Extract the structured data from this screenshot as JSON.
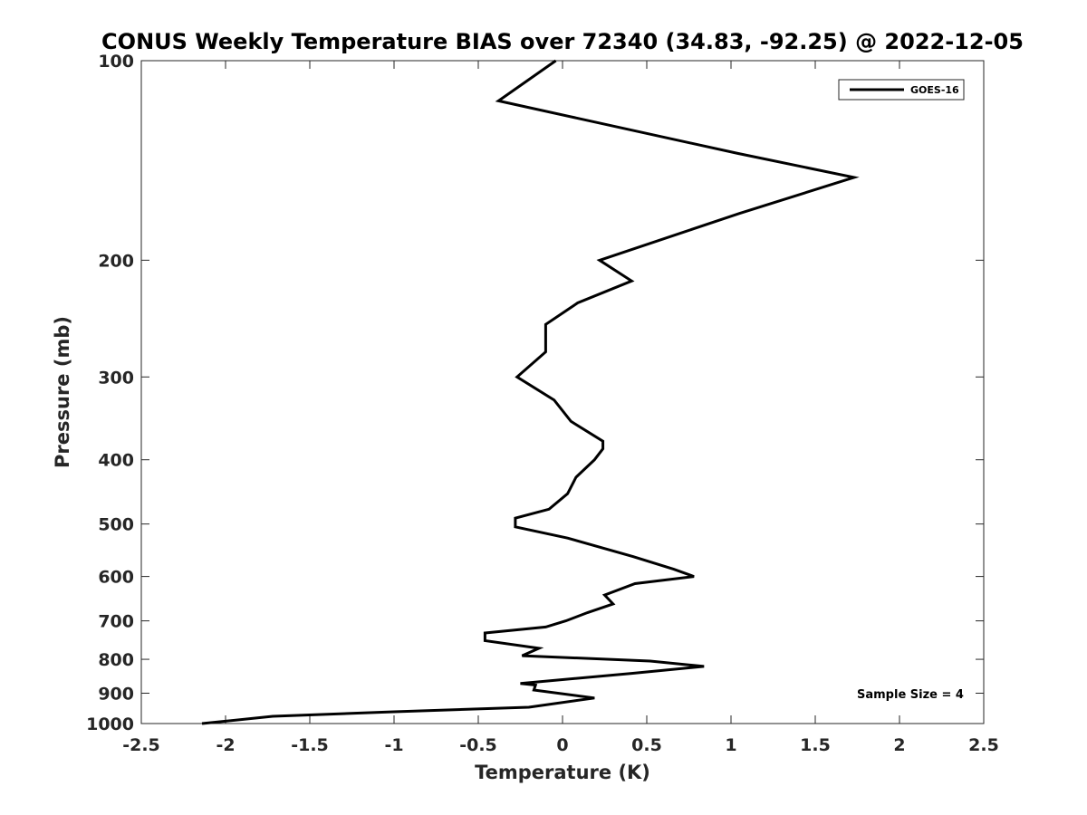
{
  "chart_data": {
    "type": "line",
    "title": "CONUS Weekly Temperature BIAS over 72340 (34.83, -92.25) @ 2022-12-05",
    "xlabel": "Temperature (K)",
    "ylabel": "Pressure (mb)",
    "xlim": [
      -2.5,
      2.5
    ],
    "ylim": [
      1000,
      100
    ],
    "yscale": "log",
    "y_reversed": true,
    "grid": false,
    "legend_position": "top-right",
    "x_ticks": [
      -2.5,
      -2,
      -1.5,
      -1,
      -0.5,
      0,
      0.5,
      1,
      1.5,
      2,
      2.5
    ],
    "x_tick_labels": [
      "-2.5",
      "-2",
      "-1.5",
      "-1",
      "-0.5",
      "0",
      "0.5",
      "1",
      "1.5",
      "2",
      "2.5"
    ],
    "y_ticks": [
      100,
      200,
      300,
      400,
      500,
      600,
      700,
      800,
      900,
      1000
    ],
    "y_tick_labels": [
      "100",
      "200",
      "300",
      "400",
      "500",
      "600",
      "700",
      "800",
      "900",
      "1000"
    ],
    "annotation": "Sample Size = 4",
    "series": [
      {
        "name": "GOES-16",
        "color": "#000000",
        "points": [
          [
            -0.04,
            100
          ],
          [
            -0.38,
            115
          ],
          [
            1.04,
            138
          ],
          [
            1.73,
            150
          ],
          [
            1.05,
            170
          ],
          [
            0.22,
            200
          ],
          [
            0.41,
            215
          ],
          [
            0.09,
            232
          ],
          [
            -0.1,
            250
          ],
          [
            -0.1,
            275
          ],
          [
            -0.27,
            300
          ],
          [
            -0.05,
            325
          ],
          [
            0.05,
            350
          ],
          [
            0.24,
            375
          ],
          [
            0.24,
            385
          ],
          [
            0.19,
            400
          ],
          [
            0.08,
            425
          ],
          [
            0.03,
            450
          ],
          [
            -0.08,
            475
          ],
          [
            -0.28,
            490
          ],
          [
            -0.28,
            505
          ],
          [
            0.03,
            525
          ],
          [
            0.42,
            560
          ],
          [
            0.66,
            585
          ],
          [
            0.78,
            600
          ],
          [
            0.43,
            615
          ],
          [
            0.25,
            640
          ],
          [
            0.3,
            660
          ],
          [
            0.15,
            680
          ],
          [
            0.02,
            700
          ],
          [
            -0.1,
            715
          ],
          [
            -0.46,
            730
          ],
          [
            -0.46,
            750
          ],
          [
            -0.14,
            770
          ],
          [
            -0.24,
            790
          ],
          [
            0.52,
            805
          ],
          [
            0.84,
            820
          ],
          [
            0.41,
            840
          ],
          [
            -0.25,
            870
          ],
          [
            -0.16,
            875
          ],
          [
            -0.17,
            890
          ],
          [
            0.19,
            915
          ],
          [
            -0.2,
            945
          ],
          [
            -1.0,
            960
          ],
          [
            -1.72,
            975
          ],
          [
            -2.14,
            1000
          ]
        ]
      }
    ]
  }
}
